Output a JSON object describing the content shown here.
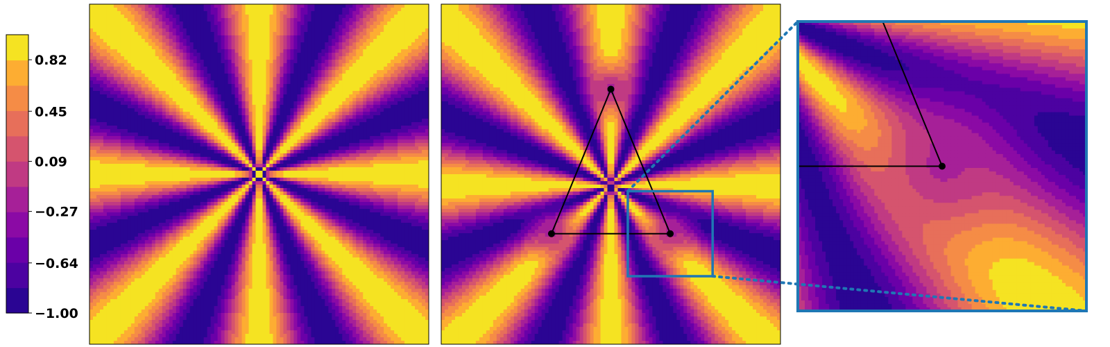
{
  "chart_data": [
    {
      "type": "heatmap",
      "role": "colorbar",
      "colormap": "plasma",
      "orientation": "vertical",
      "range": [
        -1.0,
        1.0
      ],
      "levels": 11,
      "tick_labels": [
        "0.82",
        "0.45",
        "0.09",
        "−0.27",
        "−0.64",
        "−1.00"
      ],
      "tick_values": [
        0.82,
        0.45,
        0.09,
        -0.27,
        -0.64,
        -1.0
      ]
    },
    {
      "type": "heatmap",
      "description": "filled contour of cos(8·θ) around a single point",
      "angular_frequency": 8,
      "center": [
        0,
        0
      ],
      "xlim": [
        -1,
        1
      ],
      "ylim": [
        -1,
        1
      ]
    },
    {
      "type": "heatmap",
      "description": "filled contour around a triangle of three points with connecting edges",
      "xlim": [
        -1,
        1
      ],
      "ylim": [
        -1,
        1
      ],
      "triangle_vertices": [
        [
          0.0,
          0.5
        ],
        [
          -0.35,
          -0.35
        ],
        [
          0.35,
          -0.35
        ]
      ],
      "inset_region": {
        "x": [
          0.1,
          0.6
        ],
        "y": [
          -0.6,
          -0.1
        ]
      },
      "inset_frame_color": "#1f77b4",
      "connector_style": "dotted"
    }
  ]
}
